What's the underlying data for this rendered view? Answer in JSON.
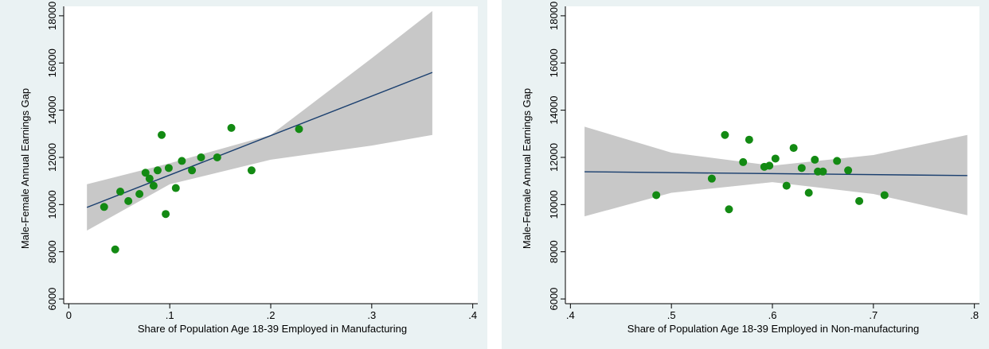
{
  "chart_data": [
    {
      "type": "scatter",
      "title": "",
      "xlabel": "Share of Population Age 18-39 Employed in Manufacturing",
      "ylabel": "Male-Female Annual Earnings Gap",
      "xlim": [
        0,
        0.4
      ],
      "ylim": [
        6000,
        18000
      ],
      "xticks": [
        0,
        0.1,
        0.2,
        0.3,
        0.4
      ],
      "xtick_labels": [
        "0",
        ".1",
        ".2",
        ".3",
        ".4"
      ],
      "yticks": [
        6000,
        8000,
        10000,
        12000,
        14000,
        16000,
        18000
      ],
      "ytick_labels": [
        "6000",
        "8000",
        "10000",
        "12000",
        "14000",
        "16000",
        "18000"
      ],
      "grid": false,
      "legend": "none",
      "points": {
        "x": [
          0.035,
          0.046,
          0.051,
          0.059,
          0.07,
          0.076,
          0.08,
          0.084,
          0.088,
          0.092,
          0.096,
          0.099,
          0.106,
          0.112,
          0.122,
          0.131,
          0.147,
          0.161,
          0.181,
          0.228
        ],
        "y": [
          9900,
          8100,
          10550,
          10150,
          10450,
          11350,
          11100,
          10800,
          11450,
          12950,
          9600,
          11550,
          10700,
          11850,
          11450,
          12000,
          12000,
          13250,
          11450,
          13200
        ]
      },
      "fit_line": {
        "x": [
          0.018,
          0.36
        ],
        "y": [
          9880,
          15600
        ]
      },
      "confidence_band": {
        "x": [
          0.018,
          0.1,
          0.2,
          0.3,
          0.36
        ],
        "lower": [
          8900,
          10860,
          11900,
          12500,
          12950
        ],
        "upper": [
          10860,
          11750,
          12950,
          16200,
          18200
        ]
      },
      "colors": {
        "points": "#138a13",
        "line": "#1a3f6f",
        "band": "#c8c8c8"
      }
    },
    {
      "type": "scatter",
      "title": "",
      "xlabel": "Share of Population Age 18-39 Employed in Non-manufacturing",
      "ylabel": "Male-Female Annual Earnings Gap",
      "xlim": [
        0.4,
        0.8
      ],
      "ylim": [
        6000,
        18000
      ],
      "xticks": [
        0.4,
        0.5,
        0.6,
        0.7,
        0.8
      ],
      "xtick_labels": [
        ".4",
        ".5",
        ".6",
        ".7",
        ".8"
      ],
      "yticks": [
        6000,
        8000,
        10000,
        12000,
        14000,
        16000,
        18000
      ],
      "ytick_labels": [
        "6000",
        "8000",
        "10000",
        "12000",
        "14000",
        "16000",
        "18000"
      ],
      "grid": false,
      "legend": "none",
      "points": {
        "x": [
          0.485,
          0.54,
          0.553,
          0.557,
          0.571,
          0.577,
          0.592,
          0.597,
          0.603,
          0.614,
          0.621,
          0.629,
          0.636,
          0.642,
          0.645,
          0.65,
          0.664,
          0.675,
          0.686,
          0.711
        ],
        "y": [
          10400,
          11100,
          12950,
          9800,
          11800,
          12750,
          11600,
          11650,
          11950,
          10800,
          12400,
          11550,
          10500,
          11900,
          11400,
          11400,
          11850,
          11450,
          10150,
          10400
        ]
      },
      "fit_line": {
        "x": [
          0.414,
          0.793
        ],
        "y": [
          11390,
          11230
        ]
      },
      "confidence_band": {
        "x": [
          0.414,
          0.5,
          0.6,
          0.7,
          0.793
        ],
        "lower": [
          9500,
          10500,
          10950,
          10450,
          9550
        ],
        "upper": [
          13300,
          12200,
          11650,
          12100,
          12950
        ]
      },
      "colors": {
        "points": "#138a13",
        "line": "#1a3f6f",
        "band": "#c8c8c8"
      }
    }
  ]
}
